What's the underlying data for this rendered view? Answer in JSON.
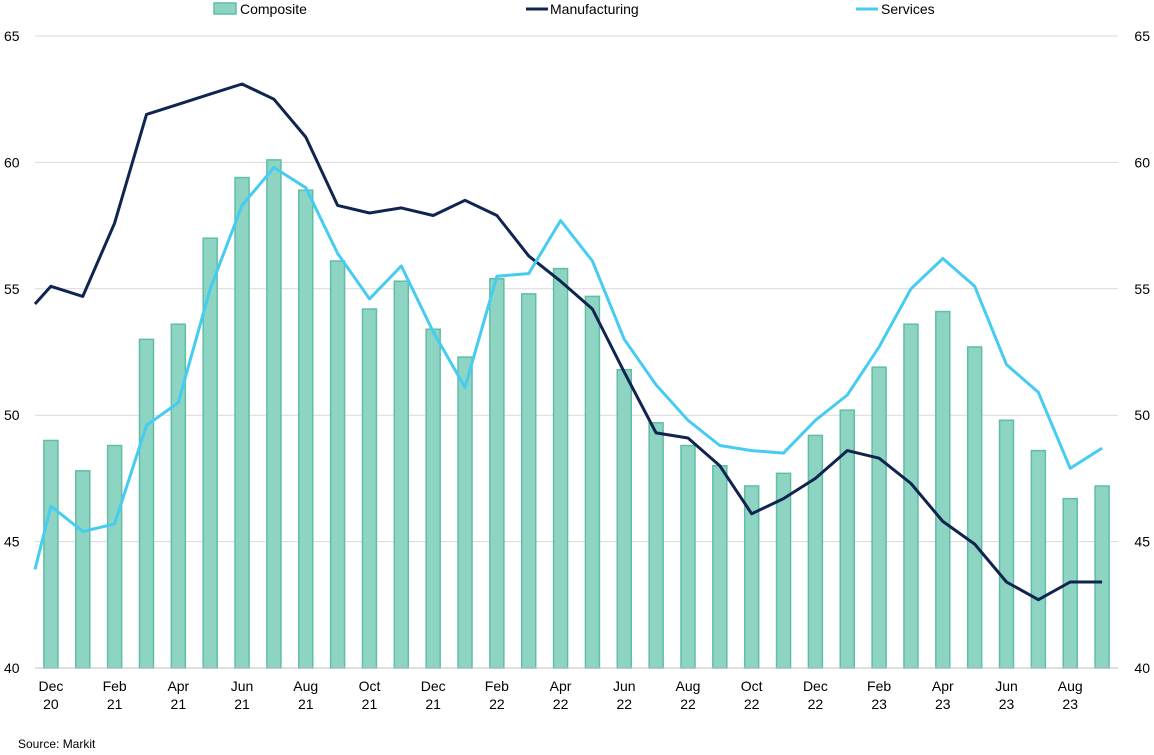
{
  "chart_data": {
    "type": "bar",
    "source": "Source: Markit",
    "ylim": [
      40,
      65
    ],
    "yticks": [
      40,
      45,
      50,
      55,
      60,
      65
    ],
    "grid": true,
    "legend_position": "top",
    "x": [
      "Dec 20",
      "Jan 21",
      "Feb 21",
      "Mar 21",
      "Apr 21",
      "May 21",
      "Jun 21",
      "Jul 21",
      "Aug 21",
      "Sep 21",
      "Oct 21",
      "Nov 21",
      "Dec 21",
      "Jan 22",
      "Feb 22",
      "Mar 22",
      "Apr 22",
      "May 22",
      "Jun 22",
      "Jul 22",
      "Aug 22",
      "Sep 22",
      "Oct 22",
      "Nov 22",
      "Dec 22",
      "Jan 23",
      "Feb 23",
      "Mar 23",
      "Apr 23",
      "May 23",
      "Jun 23",
      "Jul 23",
      "Aug 23",
      "Sep 23"
    ],
    "x_tick_labels": [
      {
        "index": 0,
        "line1": "Dec",
        "line2": "20"
      },
      {
        "index": 2,
        "line1": "Feb",
        "line2": "21"
      },
      {
        "index": 4,
        "line1": "Apr",
        "line2": "21"
      },
      {
        "index": 6,
        "line1": "Jun",
        "line2": "21"
      },
      {
        "index": 8,
        "line1": "Aug",
        "line2": "21"
      },
      {
        "index": 10,
        "line1": "Oct",
        "line2": "21"
      },
      {
        "index": 12,
        "line1": "Dec",
        "line2": "21"
      },
      {
        "index": 14,
        "line1": "Feb",
        "line2": "22"
      },
      {
        "index": 16,
        "line1": "Apr",
        "line2": "22"
      },
      {
        "index": 18,
        "line1": "Jun",
        "line2": "22"
      },
      {
        "index": 20,
        "line1": "Aug",
        "line2": "22"
      },
      {
        "index": 22,
        "line1": "Oct",
        "line2": "22"
      },
      {
        "index": 24,
        "line1": "Dec",
        "line2": "22"
      },
      {
        "index": 26,
        "line1": "Feb",
        "line2": "23"
      },
      {
        "index": 28,
        "line1": "Apr",
        "line2": "23"
      },
      {
        "index": 30,
        "line1": "Jun",
        "line2": "23"
      },
      {
        "index": 32,
        "line1": "Aug",
        "line2": "23"
      }
    ],
    "series": [
      {
        "name": "Composite",
        "type": "bar",
        "color": "#8ed4c2",
        "edge_color": "#5fbea6",
        "values": [
          49.0,
          47.8,
          48.8,
          53.0,
          53.6,
          57.0,
          59.4,
          60.1,
          58.9,
          56.1,
          54.2,
          55.3,
          53.4,
          52.3,
          55.4,
          54.8,
          55.8,
          54.7,
          51.8,
          49.7,
          48.8,
          48.0,
          47.2,
          47.7,
          49.2,
          50.2,
          51.9,
          53.6,
          54.1,
          52.7,
          49.8,
          48.6,
          46.7,
          47.2
        ]
      },
      {
        "name": "Manufacturing",
        "type": "line",
        "color": "#0f2550",
        "start_value": 54.4,
        "values": [
          55.1,
          54.7,
          57.6,
          61.9,
          62.3,
          62.7,
          63.1,
          62.5,
          61.0,
          58.3,
          58.0,
          58.2,
          57.9,
          58.5,
          57.9,
          56.3,
          55.3,
          54.2,
          51.7,
          49.3,
          49.1,
          48.0,
          46.1,
          46.7,
          47.5,
          48.6,
          48.3,
          47.3,
          45.8,
          44.9,
          43.4,
          42.7,
          43.4,
          43.4
        ]
      },
      {
        "name": "Services",
        "type": "line",
        "color": "#46ccf0",
        "start_value": 43.9,
        "values": [
          46.4,
          45.4,
          45.7,
          49.6,
          50.5,
          55.0,
          58.3,
          59.8,
          59.0,
          56.4,
          54.6,
          55.9,
          53.3,
          51.1,
          55.5,
          55.6,
          57.7,
          56.1,
          53.0,
          51.2,
          49.8,
          48.8,
          48.6,
          48.5,
          49.8,
          50.8,
          52.7,
          55.0,
          56.2,
          55.1,
          52.0,
          50.9,
          47.9,
          48.7
        ]
      }
    ]
  }
}
